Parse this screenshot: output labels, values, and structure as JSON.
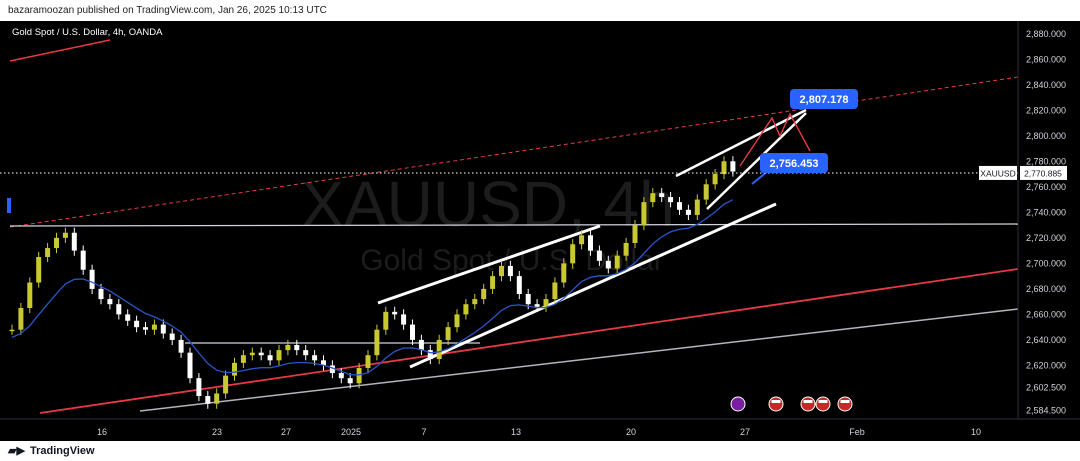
{
  "header": {
    "publisher": "bazaramoozan published on TradingView.com, Jan 26, 2025 10:13 UTC"
  },
  "footer": {
    "brand": "TradingView",
    "brand_icon": "tradingview-logo-icon"
  },
  "chart_data": {
    "type": "line",
    "symbol_title": "Gold Spot / U.S. Dollar, 4h, OANDA",
    "watermark_symbol": "XAUUSD, 4h",
    "watermark_name": "Gold Spot / U.S. Dollar",
    "ylim": [
      2578,
      2890
    ],
    "y_ticks": [
      "2,880.000",
      "2,860.000",
      "2,840.000",
      "2,820.000",
      "2,800.000",
      "2,780.000",
      "2,760.000",
      "2,740.000",
      "2,720.000",
      "2,700.000",
      "2,680.000",
      "2,660.000",
      "2,640.000",
      "2,620.000",
      "2,602.500",
      "2,584.500"
    ],
    "x_ticks": [
      "16",
      "23",
      "27",
      "2025",
      "7",
      "13",
      "20",
      "27",
      "Feb",
      "10"
    ],
    "current_price": {
      "symbol": "XAUUSD",
      "value": "2,770.885"
    },
    "annotations": [
      {
        "label": "2,807.178",
        "kind": "target"
      },
      {
        "label": "2,756.453",
        "kind": "support"
      }
    ],
    "series": [
      {
        "name": "XAUUSD",
        "color": "#c8c832",
        "values": [
          2648,
          2665,
          2685,
          2705,
          2712,
          2720,
          2724,
          2710,
          2695,
          2680,
          2672,
          2668,
          2660,
          2655,
          2650,
          2648,
          2652,
          2645,
          2640,
          2630,
          2610,
          2596,
          2590,
          2598,
          2612,
          2622,
          2628,
          2630,
          2628,
          2624,
          2632,
          2636,
          2632,
          2628,
          2624,
          2620,
          2614,
          2610,
          2606,
          2618,
          2628,
          2648,
          2662,
          2660,
          2652,
          2640,
          2632,
          2625,
          2640,
          2650,
          2660,
          2668,
          2672,
          2680,
          2690,
          2698,
          2690,
          2676,
          2668,
          2666,
          2672,
          2685,
          2700,
          2715,
          2722,
          2710,
          2702,
          2696,
          2706,
          2716,
          2730,
          2748,
          2755,
          2752,
          2748,
          2742,
          2738,
          2750,
          2762,
          2770,
          2780,
          2772
        ]
      }
    ],
    "indicator": {
      "name": "",
      "color": "#2a55c8"
    },
    "colors": {
      "up": "#c8c832",
      "down": "#ffffff",
      "support_line": "#e63946",
      "channel": "#ffffff",
      "label_bg": "#2962ff"
    }
  }
}
